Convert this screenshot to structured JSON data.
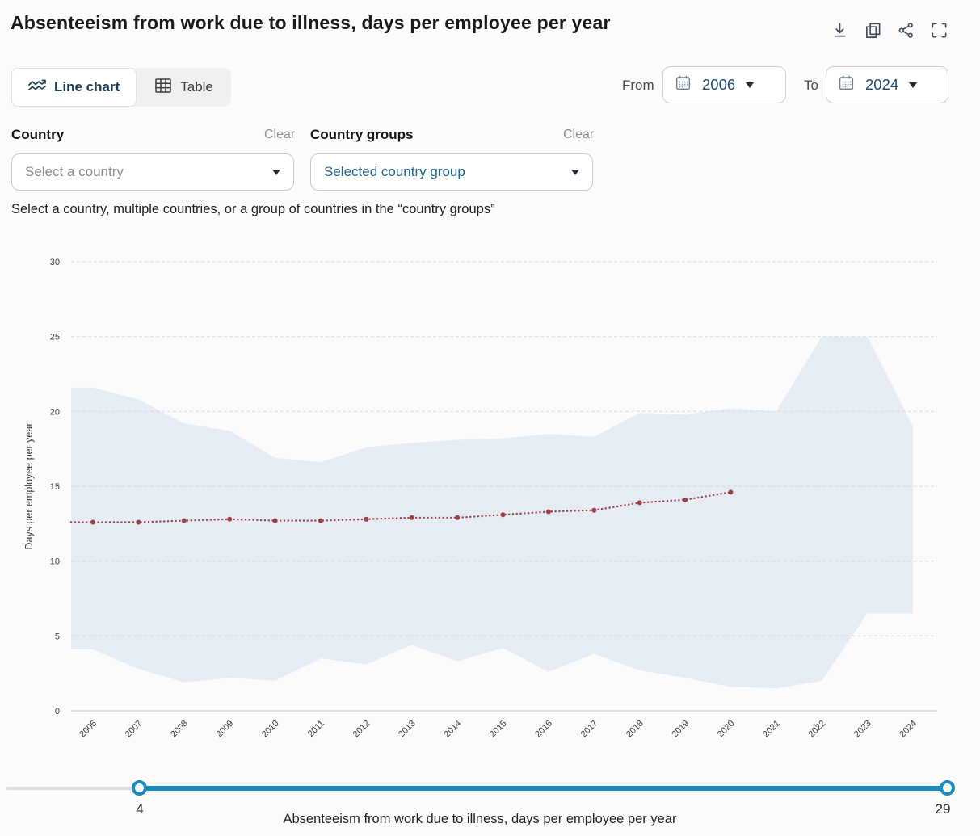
{
  "header": {
    "title": "Absenteeism from work due to illness, days per employee per year",
    "icons": [
      "download-icon",
      "copy-icon",
      "share-icon",
      "fullscreen-icon"
    ]
  },
  "tabs": {
    "line_chart": "Line chart",
    "table": "Table"
  },
  "date_range": {
    "from_label": "From",
    "from_value": "2006",
    "to_label": "To",
    "to_value": "2024"
  },
  "filters": {
    "country": {
      "label": "Country",
      "clear": "Clear",
      "placeholder": "Select a country"
    },
    "country_groups": {
      "label": "Country groups",
      "clear": "Clear",
      "value": "Selected country group"
    }
  },
  "helper_text": "Select a country, multiple countries, or a group of countries in the “country groups”",
  "chart_data": {
    "type": "line",
    "title": "Absenteeism from work due to illness, days per employee per year",
    "ylabel": "Days per employee per year",
    "ylim": [
      0,
      30
    ],
    "yticks": [
      0,
      5,
      10,
      15,
      20,
      25,
      30
    ],
    "grid": true,
    "legend": false,
    "categories": [
      2006,
      2007,
      2008,
      2009,
      2010,
      2011,
      2012,
      2013,
      2014,
      2015,
      2016,
      2017,
      2018,
      2019,
      2020,
      2021,
      2022,
      2023,
      2024
    ],
    "series": [
      {
        "name": "mean",
        "style": "dotted",
        "color": "#9a4143",
        "values": [
          12.6,
          12.6,
          12.7,
          12.8,
          12.7,
          12.7,
          12.8,
          12.9,
          12.9,
          13.1,
          13.3,
          13.4,
          13.9,
          14.1,
          14.6,
          null,
          null,
          null,
          null
        ]
      },
      {
        "name": "upper_bound",
        "style": "band-top",
        "values": [
          21.6,
          20.8,
          19.2,
          18.7,
          16.9,
          16.6,
          17.6,
          17.9,
          18.1,
          18.2,
          18.5,
          18.3,
          19.9,
          19.8,
          20.2,
          20.0,
          25.0,
          25.0,
          19.0
        ]
      },
      {
        "name": "lower_bound",
        "style": "band-bottom",
        "values": [
          4.1,
          2.8,
          1.9,
          2.2,
          2.0,
          3.5,
          3.1,
          4.4,
          3.3,
          4.2,
          2.6,
          3.8,
          2.7,
          2.2,
          1.6,
          1.5,
          2.0,
          6.5,
          6.5
        ]
      }
    ],
    "band_color": "#e5ecf3",
    "line_color": "#9a4143"
  },
  "slider": {
    "min_label": "4",
    "max_label": "29",
    "accent_color": "#1b8ac0"
  },
  "caption": "Absenteeism from work due to illness, days per employee per year",
  "colors": {
    "accent_blue": "#1b8ac0",
    "link_blue": "#1d6787",
    "year_text": "#1e4e74",
    "band": "#e5ecf3",
    "mean_line": "#9a4143"
  }
}
